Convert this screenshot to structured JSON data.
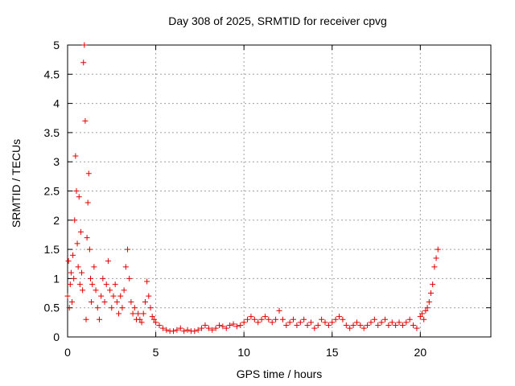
{
  "chart_data": {
    "type": "scatter",
    "title": "Day 308 of 2025, SRMTID for receiver cpvg",
    "xlabel": "GPS time / hours",
    "ylabel": "SRMTID / TECUs",
    "xlim": [
      0,
      24
    ],
    "ylim": [
      0,
      5
    ],
    "xticks": [
      0,
      5,
      10,
      15,
      20
    ],
    "xtick_labels": [
      "0",
      "5",
      "10",
      "15",
      "20"
    ],
    "yticks": [
      0,
      0.5,
      1,
      1.5,
      2,
      2.5,
      3,
      3.5,
      4,
      4.5,
      5
    ],
    "ytick_labels": [
      "0",
      "0.5",
      "1",
      "1.5",
      "2",
      "2.5",
      "3",
      "3.5",
      "4",
      "4.5",
      "5"
    ],
    "grid": true,
    "marker": "+",
    "color": "#e00000",
    "series": [
      {
        "name": "cpvg",
        "x": [
          0.0,
          0.05,
          0.1,
          0.15,
          0.2,
          0.25,
          0.3,
          0.35,
          0.4,
          0.45,
          0.5,
          0.55,
          0.6,
          0.65,
          0.7,
          0.75,
          0.8,
          0.85,
          0.9,
          0.95,
          1.0,
          1.05,
          1.1,
          1.15,
          1.2,
          1.25,
          1.3,
          1.35,
          1.4,
          1.5,
          1.6,
          1.7,
          1.8,
          1.9,
          2.0,
          2.1,
          2.2,
          2.3,
          2.4,
          2.5,
          2.6,
          2.7,
          2.8,
          2.9,
          3.0,
          3.1,
          3.2,
          3.3,
          3.4,
          3.5,
          3.6,
          3.7,
          3.8,
          3.9,
          4.0,
          4.1,
          4.2,
          4.3,
          4.4,
          4.5,
          4.6,
          4.7,
          4.8,
          4.9,
          5.0,
          5.2,
          5.4,
          5.6,
          5.8,
          6.0,
          6.2,
          6.4,
          6.6,
          6.8,
          7.0,
          7.2,
          7.4,
          7.6,
          7.8,
          8.0,
          8.2,
          8.4,
          8.6,
          8.8,
          9.0,
          9.2,
          9.4,
          9.6,
          9.8,
          10.0,
          10.2,
          10.4,
          10.6,
          10.8,
          11.0,
          11.2,
          11.4,
          11.6,
          11.8,
          12.0,
          12.2,
          12.4,
          12.6,
          12.8,
          13.0,
          13.2,
          13.4,
          13.6,
          13.8,
          14.0,
          14.2,
          14.4,
          14.6,
          14.8,
          15.0,
          15.2,
          15.4,
          15.6,
          15.8,
          16.0,
          16.2,
          16.4,
          16.6,
          16.8,
          17.0,
          17.2,
          17.4,
          17.6,
          17.8,
          18.0,
          18.2,
          18.4,
          18.6,
          18.8,
          19.0,
          19.2,
          19.4,
          19.6,
          19.8,
          20.0,
          20.1,
          20.2,
          20.3,
          20.4,
          20.5,
          20.6,
          20.7,
          20.8,
          20.9,
          21.0
        ],
        "y": [
          0.7,
          1.3,
          0.5,
          0.9,
          1.1,
          0.6,
          1.4,
          1.0,
          2.0,
          3.1,
          2.5,
          1.6,
          1.2,
          2.4,
          0.9,
          1.8,
          1.1,
          0.8,
          4.7,
          5.0,
          3.7,
          0.3,
          1.7,
          2.3,
          2.8,
          1.5,
          1.0,
          0.6,
          0.9,
          1.2,
          0.8,
          0.5,
          0.3,
          0.7,
          1.0,
          0.6,
          0.9,
          1.3,
          0.8,
          0.5,
          0.7,
          0.9,
          0.6,
          0.4,
          0.7,
          0.5,
          0.8,
          1.2,
          1.5,
          1.0,
          0.6,
          0.4,
          0.5,
          0.3,
          0.4,
          0.3,
          0.25,
          0.4,
          0.6,
          0.95,
          0.7,
          0.5,
          0.35,
          0.3,
          0.25,
          0.2,
          0.15,
          0.12,
          0.1,
          0.1,
          0.12,
          0.15,
          0.1,
          0.12,
          0.1,
          0.1,
          0.12,
          0.15,
          0.2,
          0.15,
          0.12,
          0.15,
          0.2,
          0.18,
          0.15,
          0.2,
          0.22,
          0.18,
          0.2,
          0.25,
          0.3,
          0.35,
          0.3,
          0.25,
          0.3,
          0.35,
          0.3,
          0.25,
          0.3,
          0.45,
          0.3,
          0.2,
          0.25,
          0.3,
          0.2,
          0.25,
          0.3,
          0.2,
          0.25,
          0.15,
          0.2,
          0.3,
          0.25,
          0.2,
          0.25,
          0.3,
          0.35,
          0.3,
          0.2,
          0.15,
          0.2,
          0.25,
          0.2,
          0.15,
          0.2,
          0.25,
          0.3,
          0.2,
          0.25,
          0.3,
          0.2,
          0.25,
          0.2,
          0.25,
          0.2,
          0.25,
          0.3,
          0.2,
          0.15,
          0.35,
          0.4,
          0.3,
          0.45,
          0.5,
          0.6,
          0.75,
          0.9,
          1.2,
          1.35,
          1.5
        ]
      }
    ]
  }
}
